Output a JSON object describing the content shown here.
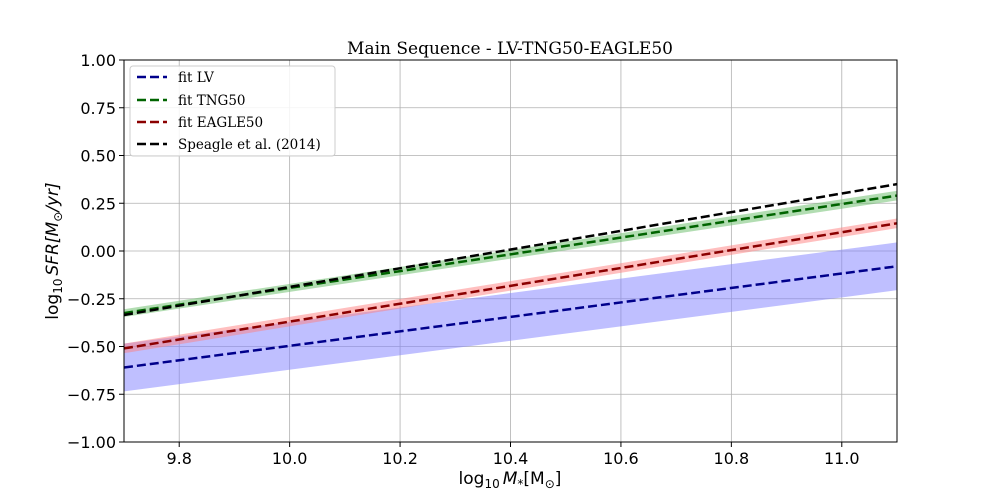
{
  "chart_data": {
    "type": "line",
    "title": "Main Sequence - LV-TNG50-EAGLE50",
    "xlabel": {
      "prefix": "log",
      "sub": "10",
      "main": "M",
      "mainsub": "*",
      "unit": "[M",
      "unitsub": "⊙",
      "close": "]"
    },
    "ylabel": {
      "prefix": "log",
      "sub": "10",
      "main": "SFR",
      "unit": "[M",
      "unitsub": "⊙",
      "close": "/yr]"
    },
    "xlim": [
      9.7,
      11.1
    ],
    "ylim": [
      -1.0,
      1.0
    ],
    "xticks": [
      9.8,
      10.0,
      10.2,
      10.4,
      10.6,
      10.8,
      11.0
    ],
    "xtick_labels": [
      "9.8",
      "10.0",
      "10.2",
      "10.4",
      "10.6",
      "10.8",
      "11.0"
    ],
    "yticks": [
      -1.0,
      -0.75,
      -0.5,
      -0.25,
      0.0,
      0.25,
      0.5,
      0.75,
      1.0
    ],
    "ytick_labels": [
      "−1.00",
      "−0.75",
      "−0.50",
      "−0.25",
      "0.00",
      "0.25",
      "0.50",
      "0.75",
      "1.00"
    ],
    "grid": true,
    "legend_position": "top-left",
    "series": [
      {
        "name": "fit LV",
        "color": "#00008b",
        "x": [
          9.7,
          11.1
        ],
        "y": [
          -0.61,
          -0.08
        ],
        "band_lower": [
          -0.735,
          -0.205
        ],
        "band_upper": [
          -0.485,
          0.045
        ],
        "band_color": "#7f7fff"
      },
      {
        "name": "fit TNG50",
        "color": "#006400",
        "x": [
          9.7,
          11.1
        ],
        "y": [
          -0.325,
          0.29
        ],
        "band_lower": [
          -0.345,
          0.265
        ],
        "band_upper": [
          -0.305,
          0.315
        ],
        "band_color": "#66bb66"
      },
      {
        "name": "fit EAGLE50",
        "color": "#8b0000",
        "x": [
          9.7,
          11.1
        ],
        "y": [
          -0.51,
          0.145
        ],
        "band_lower": [
          -0.535,
          0.12
        ],
        "band_upper": [
          -0.485,
          0.17
        ],
        "band_color": "#ff7f7f"
      },
      {
        "name": "Speagle et al. (2014)",
        "color": "#000000",
        "x": [
          9.7,
          11.1
        ],
        "y": [
          -0.335,
          0.35
        ]
      }
    ]
  }
}
